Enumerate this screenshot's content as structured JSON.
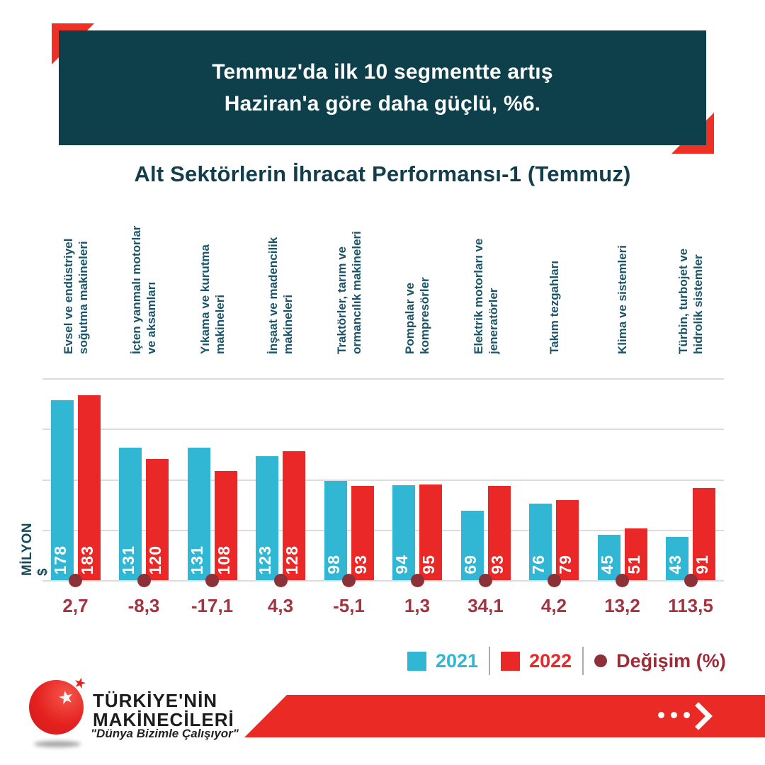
{
  "banner": {
    "line1": "Temmuz'da ilk 10 segmentte artış",
    "line2": "Haziran'a göre daha güçlü, %6."
  },
  "title": "Alt Sektörlerin İhracat Performansı-1 (Temmuz)",
  "chart_data": {
    "type": "bar",
    "title": "Alt Sektörlerin İhracat Performansı-1 (Temmuz)",
    "ylabel": "MİLYON $",
    "ylim": [
      0,
      200
    ],
    "gridlines": [
      0,
      50,
      100,
      150,
      200
    ],
    "grid": true,
    "legend_position": "bottom-right",
    "categories": [
      "Evsel ve endüstriyel\nsoğutma makineleri",
      "İçten yanmalı motorlar\nve aksamları",
      "Yıkama ve kurutma\nmakineleri",
      "İnşaat ve madencilik\nmakineleri",
      "Traktörler, tarım ve\normancılık makineleri",
      "Pompalar ve\nkompresörler",
      "Elektrik motorları ve\njeneratörler",
      "Takım tezgahları",
      "Klima ve sistemleri",
      "Türbin, turbojet ve\nhidrolik sistemler"
    ],
    "series": [
      {
        "name": "2021",
        "color": "#31b7d3",
        "values": [
          178,
          131,
          131,
          123,
          98,
          94,
          69,
          76,
          45,
          43
        ]
      },
      {
        "name": "2022",
        "color": "#ea2828",
        "values": [
          183,
          120,
          108,
          128,
          93,
          95,
          93,
          79,
          51,
          91
        ]
      }
    ],
    "change": {
      "name": "Değişim (%)",
      "dot_color": "#8d3139",
      "text_color": "#a33340",
      "values": [
        "2,7",
        "-8,3",
        "-17,1",
        "4,3",
        "-5,1",
        "1,3",
        "34,1",
        "4,2",
        "13,2",
        "113,5"
      ]
    }
  },
  "legend": {
    "items": [
      {
        "label": "2021",
        "color": "#31b7d3"
      },
      {
        "label": "2022",
        "color": "#ea2828"
      },
      {
        "label": "Değişim (%)",
        "color": "#9e2b36"
      }
    ]
  },
  "footer": {
    "brand_line1": "TÜRKİYE'NİN",
    "brand_line2": "MAKİNECİLERİ",
    "slogan": "\"Dünya Bizimle Çalışıyor\"",
    "star_icon": "★"
  },
  "colors": {
    "banner_bg": "#0d404b",
    "accent_red": "#ee3124",
    "title_text": "#113e4a",
    "category_text": "#1a5468",
    "gridline": "#dcdcdc",
    "ribbon_red": "#ea2a25"
  }
}
